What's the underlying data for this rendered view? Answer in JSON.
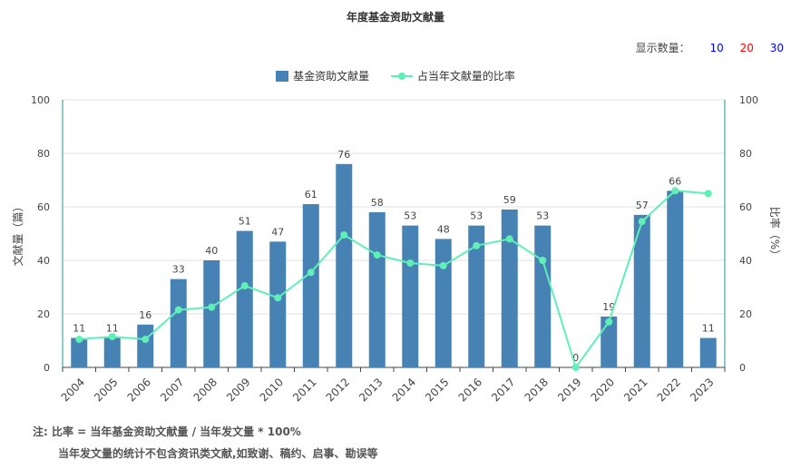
{
  "header": {
    "title": "年度基金资助文献量"
  },
  "count_selector": {
    "label": "显示数量：",
    "options": [
      "10",
      "20",
      "30"
    ],
    "colors": [
      "#0000ff",
      "#ff0000",
      "#0000ff"
    ]
  },
  "notes": {
    "line1": "注:  比率 = 当年基金资助文献量 / 当年发文量 * 100%",
    "line2": "当年发文量的统计不包含资讯类文献,如致谢、稿约、启事、勘误等"
  },
  "chart_data": {
    "type": "bar",
    "title": "年度基金资助文献量",
    "categories": [
      "2004",
      "2005",
      "2006",
      "2007",
      "2008",
      "2009",
      "2010",
      "2011",
      "2012",
      "2013",
      "2014",
      "2015",
      "2016",
      "2017",
      "2018",
      "2019",
      "2020",
      "2021",
      "2022",
      "2023"
    ],
    "series": [
      {
        "name": "基金资助文献量",
        "type": "bar",
        "axis": "left",
        "color": "#4682b4",
        "values": [
          11,
          11,
          16,
          33,
          40,
          51,
          47,
          61,
          76,
          58,
          53,
          48,
          53,
          59,
          53,
          0,
          19,
          57,
          66,
          11
        ]
      },
      {
        "name": "占当年文献量的比率",
        "type": "line",
        "axis": "right",
        "color": "#5ff0b8",
        "values": [
          10.5,
          11.5,
          10.5,
          21.5,
          22.5,
          30.5,
          26,
          35.5,
          49.5,
          42,
          39,
          38,
          45.5,
          48,
          40,
          0,
          17,
          54.5,
          66,
          65
        ]
      }
    ],
    "ylabel": "文献量（篇）",
    "y2label": "比率（%）",
    "ylim": [
      0,
      100
    ],
    "y2lim": [
      0,
      100
    ],
    "yticks": [
      "0",
      "20",
      "40",
      "60",
      "80",
      "100"
    ],
    "grid": true,
    "legend": "top-center",
    "data_labels": true
  }
}
